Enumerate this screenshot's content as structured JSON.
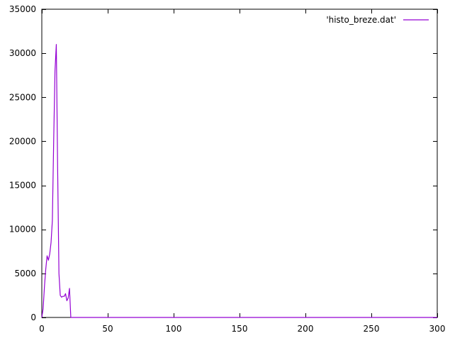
{
  "chart_data": {
    "type": "line",
    "title": "",
    "xlabel": "",
    "ylabel": "",
    "xlim": [
      0,
      300
    ],
    "ylim": [
      0,
      35000
    ],
    "xticks": [
      0,
      50,
      100,
      150,
      200,
      250,
      300
    ],
    "yticks": [
      0,
      5000,
      10000,
      15000,
      20000,
      25000,
      30000,
      35000
    ],
    "grid": false,
    "legend": "top-right",
    "series": [
      {
        "name": "'histo_breze.dat'",
        "color": "#9400d3",
        "x": [
          0,
          1,
          2,
          3,
          4,
          5,
          6,
          7,
          8,
          9,
          10,
          11,
          12,
          13,
          14,
          15,
          16,
          17,
          18,
          19,
          20,
          21,
          22,
          23,
          24,
          25,
          30,
          50,
          100,
          150,
          200,
          250,
          300
        ],
        "y": [
          0,
          1000,
          3500,
          5500,
          7000,
          6500,
          7200,
          8500,
          11000,
          20000,
          28000,
          31000,
          17000,
          5000,
          2500,
          2300,
          2400,
          2400,
          2700,
          1900,
          2200,
          3300,
          0,
          0,
          0,
          0,
          0,
          0,
          0,
          0,
          0,
          0,
          0
        ]
      }
    ]
  }
}
